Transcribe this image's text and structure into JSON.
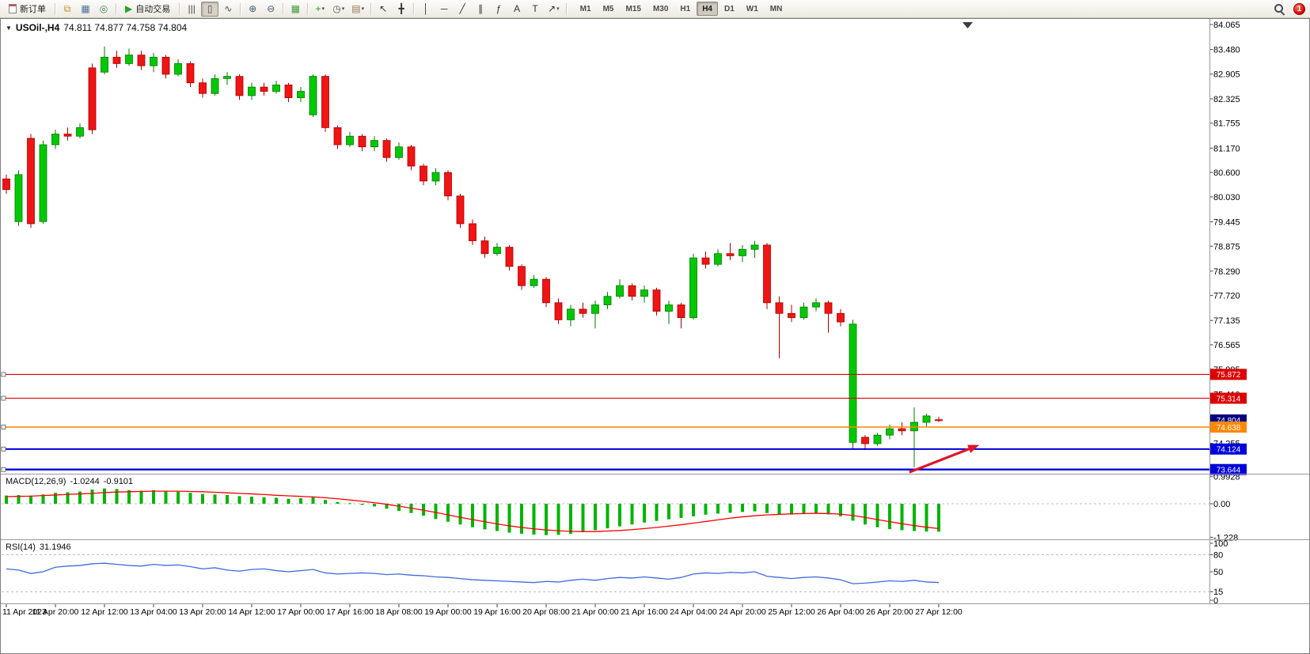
{
  "toolbar": {
    "new_order": {
      "label": "新订单"
    },
    "autotrading": {
      "label": "自动交易",
      "icon_glyph": "▶"
    },
    "dropdown_glyph": "▾",
    "notification_badge": "1",
    "icon_groups": {
      "windows": [
        {
          "id": "charts",
          "glyph": "⧉",
          "color": "#C28E1E"
        },
        {
          "id": "profiles",
          "glyph": "▦",
          "color": "#46729E"
        },
        {
          "id": "terminal",
          "glyph": "◎",
          "color": "#3A8A58"
        }
      ],
      "chart_types": [
        {
          "id": "bar-chart",
          "glyph": "|||",
          "color": "#4A4A4A"
        },
        {
          "id": "candlestick-chart",
          "glyph": "▯",
          "color": "#4A4A4A",
          "active": true
        },
        {
          "id": "line-chart",
          "glyph": "∿",
          "color": "#4A4A4A"
        }
      ],
      "zoom": [
        {
          "id": "zoom-in",
          "glyph": "⊕",
          "color": "#3C5A78"
        },
        {
          "id": "zoom-out",
          "glyph": "⊖",
          "color": "#3C5A78"
        }
      ],
      "windows_tile": [
        {
          "id": "tile-windows",
          "glyph": "▦",
          "color": "#3E9B3E"
        }
      ],
      "objects": [
        {
          "id": "indicators",
          "glyph": "+",
          "color": "#1E9E1E",
          "dropdown": true
        },
        {
          "id": "periods",
          "glyph": "◷",
          "color": "#555555",
          "dropdown": true
        },
        {
          "id": "templates",
          "glyph": "▤",
          "color": "#8A7A50",
          "dropdown": true
        }
      ],
      "cursor": [
        {
          "id": "cursor",
          "glyph": "↖",
          "color": "#333333"
        },
        {
          "id": "crosshair",
          "glyph": "╋",
          "color": "#333333"
        }
      ],
      "draw": [
        {
          "id": "vertical-line",
          "glyph": "│",
          "color": "#333333"
        },
        {
          "id": "horizontal-line",
          "glyph": "─",
          "color": "#333333"
        },
        {
          "id": "trendline",
          "glyph": "╱",
          "color": "#333333"
        },
        {
          "id": "equidistant-channel",
          "glyph": "∥",
          "color": "#333333"
        },
        {
          "id": "fibonacci",
          "glyph": "ƒ",
          "color": "#333333"
        },
        {
          "id": "text",
          "glyph": "A",
          "color": "#333333"
        },
        {
          "id": "text-label",
          "glyph": "T",
          "color": "#333333"
        },
        {
          "id": "arrows",
          "glyph": "↗",
          "color": "#333333",
          "dropdown": true
        }
      ]
    },
    "timeframes": {
      "items": [
        "M1",
        "M5",
        "M15",
        "M30",
        "H1",
        "H4",
        "D1",
        "W1",
        "MN"
      ],
      "active": "H4"
    }
  },
  "chart": {
    "collapse_arrow_glyph": "▼",
    "symbol": "USOil-,H4",
    "ohlc_line": "74.811 74.877 74.758 74.804"
  },
  "chart_data": {
    "type": "candlestick",
    "symbol": "USOil",
    "timeframe": "H4",
    "ohlc_current": {
      "open": 74.811,
      "high": 74.877,
      "low": 74.758,
      "close": 74.804
    },
    "colors": {
      "bull": "#00C800",
      "bear": "#F01414",
      "bull_line": "#007800",
      "bear_line": "#A80000",
      "background": "#FFFFFF"
    },
    "price_axis": {
      "ticks": [
        "84.065",
        "83.480",
        "82.905",
        "82.325",
        "81.755",
        "81.170",
        "80.600",
        "80.030",
        "79.445",
        "78.875",
        "78.290",
        "77.720",
        "77.135",
        "76.565",
        "75.995",
        "75.410",
        "74.835",
        "74.255",
        "73.675"
      ]
    },
    "time_labels": [
      "11 Apr 2023",
      "11 Apr 20:00",
      "12 Apr 12:00",
      "13 Apr 04:00",
      "13 Apr 20:00",
      "14 Apr 12:00",
      "17 Apr 00:00",
      "17 Apr 16:00",
      "18 Apr 08:00",
      "19 Apr 00:00",
      "19 Apr 16:00",
      "20 Apr 08:00",
      "21 Apr 00:00",
      "21 Apr 16:00",
      "24 Apr 04:00",
      "24 Apr 20:00",
      "25 Apr 12:00",
      "26 Apr 04:00",
      "26 Apr 20:00",
      "27 Apr 12:00"
    ],
    "candles": [
      [
        80.45,
        80.55,
        80.1,
        80.2
      ],
      [
        79.45,
        80.65,
        79.35,
        80.55
      ],
      [
        81.4,
        81.5,
        79.3,
        79.4
      ],
      [
        79.45,
        81.35,
        79.4,
        81.25
      ],
      [
        81.25,
        81.6,
        81.15,
        81.5
      ],
      [
        81.5,
        81.65,
        81.35,
        81.45
      ],
      [
        81.45,
        81.75,
        81.4,
        81.65
      ],
      [
        83.05,
        83.15,
        81.5,
        81.6
      ],
      [
        82.95,
        83.55,
        82.9,
        83.3
      ],
      [
        83.3,
        83.45,
        83.05,
        83.15
      ],
      [
        83.15,
        83.5,
        83.1,
        83.35
      ],
      [
        83.35,
        83.45,
        83.0,
        83.1
      ],
      [
        83.1,
        83.4,
        82.95,
        83.3
      ],
      [
        83.3,
        83.35,
        82.8,
        82.9
      ],
      [
        82.9,
        83.25,
        82.85,
        83.15
      ],
      [
        83.15,
        83.2,
        82.6,
        82.7
      ],
      [
        82.7,
        82.8,
        82.35,
        82.45
      ],
      [
        82.45,
        82.9,
        82.4,
        82.8
      ],
      [
        82.8,
        82.95,
        82.65,
        82.85
      ],
      [
        82.85,
        82.9,
        82.3,
        82.4
      ],
      [
        82.4,
        82.7,
        82.3,
        82.6
      ],
      [
        82.6,
        82.7,
        82.4,
        82.5
      ],
      [
        82.5,
        82.75,
        82.45,
        82.65
      ],
      [
        82.65,
        82.7,
        82.25,
        82.35
      ],
      [
        82.35,
        82.6,
        82.25,
        82.5
      ],
      [
        81.95,
        82.9,
        81.9,
        82.85
      ],
      [
        82.85,
        82.9,
        81.55,
        81.65
      ],
      [
        81.65,
        81.7,
        81.15,
        81.25
      ],
      [
        81.25,
        81.55,
        81.2,
        81.45
      ],
      [
        81.45,
        81.5,
        81.1,
        81.2
      ],
      [
        81.2,
        81.45,
        81.1,
        81.35
      ],
      [
        81.35,
        81.4,
        80.85,
        80.95
      ],
      [
        80.95,
        81.3,
        80.9,
        81.2
      ],
      [
        81.2,
        81.25,
        80.65,
        80.75
      ],
      [
        80.75,
        80.8,
        80.3,
        80.4
      ],
      [
        80.4,
        80.7,
        80.3,
        80.6
      ],
      [
        80.6,
        80.65,
        79.95,
        80.05
      ],
      [
        80.05,
        80.1,
        79.3,
        79.4
      ],
      [
        79.4,
        79.5,
        78.9,
        79.0
      ],
      [
        79.0,
        79.1,
        78.6,
        78.7
      ],
      [
        78.7,
        78.95,
        78.65,
        78.85
      ],
      [
        78.85,
        78.9,
        78.3,
        78.4
      ],
      [
        78.4,
        78.45,
        77.85,
        77.95
      ],
      [
        77.95,
        78.2,
        77.9,
        78.1
      ],
      [
        78.1,
        78.15,
        77.45,
        77.55
      ],
      [
        77.55,
        77.65,
        77.05,
        77.15
      ],
      [
        77.15,
        77.5,
        77.0,
        77.4
      ],
      [
        77.4,
        77.55,
        77.2,
        77.3
      ],
      [
        77.3,
        77.6,
        76.95,
        77.5
      ],
      [
        77.5,
        77.8,
        77.4,
        77.7
      ],
      [
        77.7,
        78.1,
        77.65,
        77.95
      ],
      [
        77.95,
        78.0,
        77.6,
        77.7
      ],
      [
        77.7,
        77.95,
        77.55,
        77.85
      ],
      [
        77.85,
        77.9,
        77.25,
        77.35
      ],
      [
        77.35,
        77.6,
        77.05,
        77.5
      ],
      [
        77.5,
        77.55,
        76.95,
        77.2
      ],
      [
        77.2,
        78.7,
        77.15,
        78.6
      ],
      [
        78.6,
        78.75,
        78.35,
        78.45
      ],
      [
        78.45,
        78.8,
        78.4,
        78.7
      ],
      [
        78.7,
        78.95,
        78.55,
        78.65
      ],
      [
        78.65,
        78.9,
        78.5,
        78.8
      ],
      [
        78.8,
        79.0,
        78.6,
        78.9
      ],
      [
        78.9,
        78.95,
        77.4,
        77.55
      ],
      [
        77.55,
        77.7,
        76.25,
        77.3
      ],
      [
        77.3,
        77.5,
        77.1,
        77.2
      ],
      [
        77.2,
        77.55,
        77.15,
        77.45
      ],
      [
        77.45,
        77.65,
        77.35,
        77.55
      ],
      [
        77.55,
        77.6,
        76.85,
        77.3
      ],
      [
        77.3,
        77.4,
        77.0,
        77.1
      ],
      [
        74.28,
        77.15,
        74.12,
        77.05
      ],
      [
        74.4,
        74.45,
        74.1,
        74.25
      ],
      [
        74.25,
        74.5,
        74.2,
        74.45
      ],
      [
        74.45,
        74.7,
        74.35,
        74.6
      ],
      [
        74.6,
        74.75,
        74.45,
        74.55
      ],
      [
        74.55,
        75.1,
        73.7,
        74.75
      ],
      [
        74.75,
        74.95,
        74.65,
        74.9
      ],
      [
        74.811,
        74.877,
        74.758,
        74.804
      ]
    ],
    "price_lines": [
      {
        "price": 75.872,
        "label": "75.872",
        "color": "#DC0000",
        "width": 1.2
      },
      {
        "price": 75.314,
        "label": "75.314",
        "color": "#DC0000",
        "width": 1.2
      },
      {
        "price": 74.804,
        "label": "74.804",
        "color": "#000080",
        "width": 0
      },
      {
        "price": 74.638,
        "label": "74.638",
        "color": "#FF8800",
        "width": 1.5
      },
      {
        "price": 74.124,
        "label": "74.124",
        "color": "#0000DC",
        "width": 2
      },
      {
        "price": 73.644,
        "label": "73.644",
        "color": "#0000DC",
        "width": 2.4
      }
    ],
    "arrow": {
      "from_index": 73.6,
      "from_price": 73.58,
      "to_index": 79.3,
      "to_price": 74.22,
      "color": "#E01428"
    },
    "macd": {
      "label": "MACD(12,26,9)",
      "value_main": "-1.0244",
      "value_signal": "-0.9101",
      "hist_color": "#00B400",
      "signal_color": "#FF0000",
      "scale": [
        {
          "v": 0.9928,
          "label": "0.9928"
        },
        {
          "v": 0,
          "label": "0.00"
        },
        {
          "v": -1.228,
          "label": "-1.228"
        }
      ],
      "histogram": [
        0.3,
        0.32,
        0.3,
        0.34,
        0.4,
        0.42,
        0.45,
        0.52,
        0.56,
        0.54,
        0.5,
        0.48,
        0.5,
        0.46,
        0.44,
        0.4,
        0.36,
        0.34,
        0.32,
        0.28,
        0.26,
        0.24,
        0.22,
        0.18,
        0.2,
        0.24,
        0.14,
        0.06,
        0.02,
        -0.04,
        -0.1,
        -0.18,
        -0.26,
        -0.34,
        -0.44,
        -0.56,
        -0.66,
        -0.76,
        -0.86,
        -0.94,
        -1.0,
        -1.06,
        -1.1,
        -1.13,
        -1.15,
        -1.14,
        -1.1,
        -1.04,
        -0.97,
        -0.9,
        -0.83,
        -0.76,
        -0.69,
        -0.63,
        -0.57,
        -0.52,
        -0.46,
        -0.4,
        -0.36,
        -0.33,
        -0.3,
        -0.28,
        -0.34,
        -0.38,
        -0.4,
        -0.37,
        -0.35,
        -0.39,
        -0.46,
        -0.62,
        -0.76,
        -0.86,
        -0.93,
        -0.97,
        -1.0,
        -1.02,
        -1.0244
      ],
      "signal": [
        0.26,
        0.27,
        0.28,
        0.3,
        0.32,
        0.34,
        0.36,
        0.38,
        0.41,
        0.43,
        0.44,
        0.45,
        0.46,
        0.46,
        0.46,
        0.45,
        0.44,
        0.42,
        0.4,
        0.38,
        0.36,
        0.34,
        0.31,
        0.29,
        0.27,
        0.25,
        0.22,
        0.18,
        0.14,
        0.09,
        0.04,
        -0.02,
        -0.09,
        -0.16,
        -0.24,
        -0.32,
        -0.41,
        -0.5,
        -0.58,
        -0.66,
        -0.74,
        -0.81,
        -0.87,
        -0.92,
        -0.96,
        -0.99,
        -1.01,
        -1.02,
        -1.02,
        -1.0,
        -0.98,
        -0.95,
        -0.91,
        -0.87,
        -0.82,
        -0.77,
        -0.71,
        -0.65,
        -0.59,
        -0.53,
        -0.48,
        -0.44,
        -0.41,
        -0.39,
        -0.37,
        -0.36,
        -0.35,
        -0.36,
        -0.38,
        -0.43,
        -0.5,
        -0.58,
        -0.66,
        -0.73,
        -0.8,
        -0.86,
        -0.9101
      ]
    },
    "rsi": {
      "label": "RSI(14)",
      "value": "31.1946",
      "color": "#4169E1",
      "levels": [
        80,
        15
      ],
      "scale": [
        {
          "v": 100,
          "label": "100"
        },
        {
          "v": 80,
          "label": "80"
        },
        {
          "v": 50,
          "label": "50"
        },
        {
          "v": 15,
          "label": "15"
        },
        {
          "v": 0,
          "label": "0"
        }
      ],
      "values": [
        55,
        53,
        47,
        50,
        58,
        60,
        61,
        64,
        65,
        63,
        61,
        60,
        63,
        61,
        62,
        59,
        55,
        57,
        53,
        51,
        54,
        55,
        52,
        50,
        52,
        54,
        48,
        46,
        47,
        48,
        47,
        45,
        46,
        44,
        43,
        41,
        40,
        38,
        36,
        35,
        34,
        33,
        32,
        31,
        33,
        32,
        35,
        37,
        35,
        38,
        40,
        39,
        41,
        39,
        37,
        40,
        46,
        48,
        47,
        49,
        48,
        50,
        42,
        40,
        38,
        40,
        41,
        39,
        36,
        29,
        30,
        32,
        34,
        33,
        35,
        32,
        31.19
      ]
    }
  }
}
